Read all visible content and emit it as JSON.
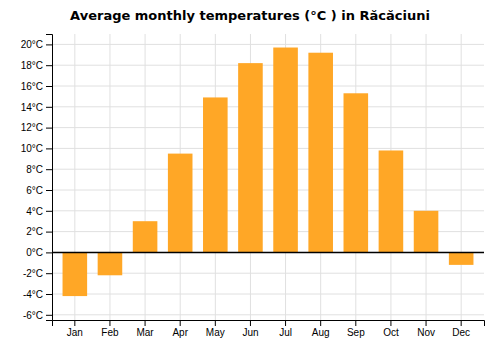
{
  "chart_data": {
    "type": "bar",
    "title": "Average monthly temperatures (°C ) in Răcăciuni",
    "categories": [
      "Jan",
      "Feb",
      "Mar",
      "Apr",
      "May",
      "Jun",
      "Jul",
      "Aug",
      "Sep",
      "Oct",
      "Nov",
      "Dec"
    ],
    "values": [
      -4.2,
      -2.2,
      3.0,
      9.5,
      14.9,
      18.2,
      19.7,
      19.2,
      15.3,
      9.8,
      4.0,
      -1.2
    ],
    "color": "#FFA726",
    "ylim": [
      -6.5,
      21.0
    ],
    "yticks": [
      {
        "value": -6,
        "label": "-6°C"
      },
      {
        "value": -4,
        "label": "-4°C"
      },
      {
        "value": -2,
        "label": "-2°C"
      },
      {
        "value": 0,
        "label": "0°C"
      },
      {
        "value": 2,
        "label": "2°C"
      },
      {
        "value": 4,
        "label": "4°C"
      },
      {
        "value": 6,
        "label": "6°C"
      },
      {
        "value": 8,
        "label": "8°C"
      },
      {
        "value": 10,
        "label": "10°C"
      },
      {
        "value": 12,
        "label": "12°C"
      },
      {
        "value": 14,
        "label": "14°C"
      },
      {
        "value": 16,
        "label": "16°C"
      },
      {
        "value": 18,
        "label": "18°C"
      },
      {
        "value": 20,
        "label": "20°C"
      }
    ],
    "grid": true
  }
}
